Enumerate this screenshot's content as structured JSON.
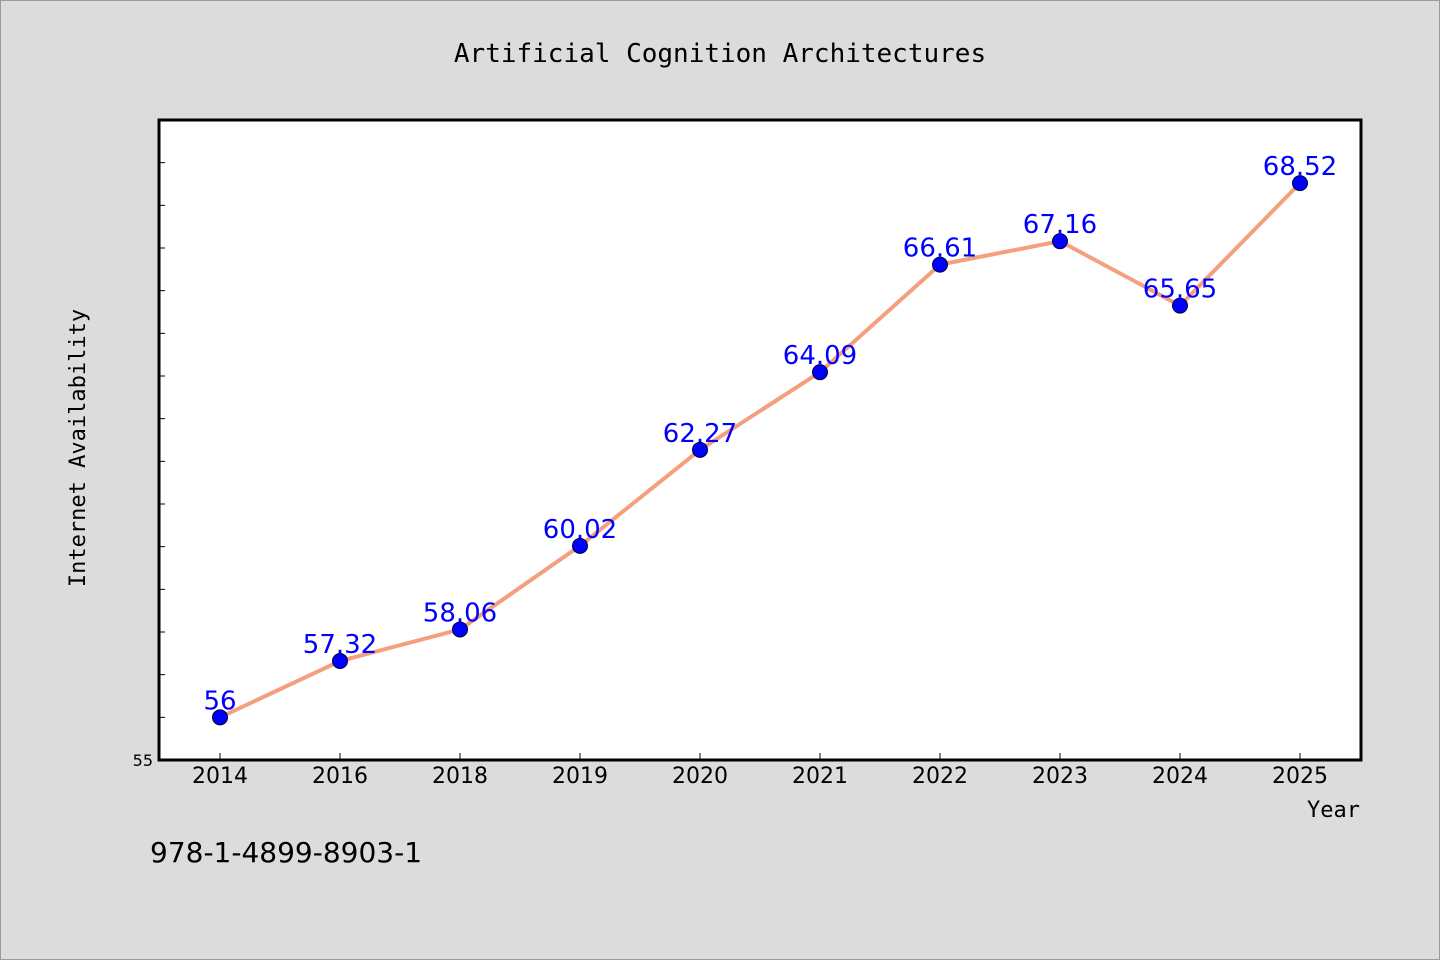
{
  "chart_data": {
    "type": "line",
    "title": "Artificial Cognition Architectures",
    "xlabel": "Year",
    "ylabel": "Internet Availability",
    "categories": [
      "2014",
      "2016",
      "2018",
      "2019",
      "2020",
      "2021",
      "2022",
      "2023",
      "2024",
      "2025"
    ],
    "series": [
      {
        "values": [
          56,
          57.32,
          58.06,
          60.02,
          62.27,
          64.09,
          66.61,
          67.16,
          65.65,
          68.52
        ]
      }
    ],
    "ylim": [
      55,
      70
    ],
    "y_tick_labels_shown": [
      "55"
    ],
    "data_labels": [
      "56",
      "57.32",
      "58.06",
      "60.02",
      "62.27",
      "64.09",
      "66.61",
      "67.16",
      "65.65",
      "68.52"
    ],
    "grid": false,
    "colors": {
      "line": "#f4a07e",
      "marker": "#0000ff",
      "data_label": "#0000ff",
      "plot_bg": "#ffffff",
      "figure_bg": "#dcdcdc"
    }
  },
  "footer": {
    "isbn": "978-1-4899-8903-1"
  }
}
